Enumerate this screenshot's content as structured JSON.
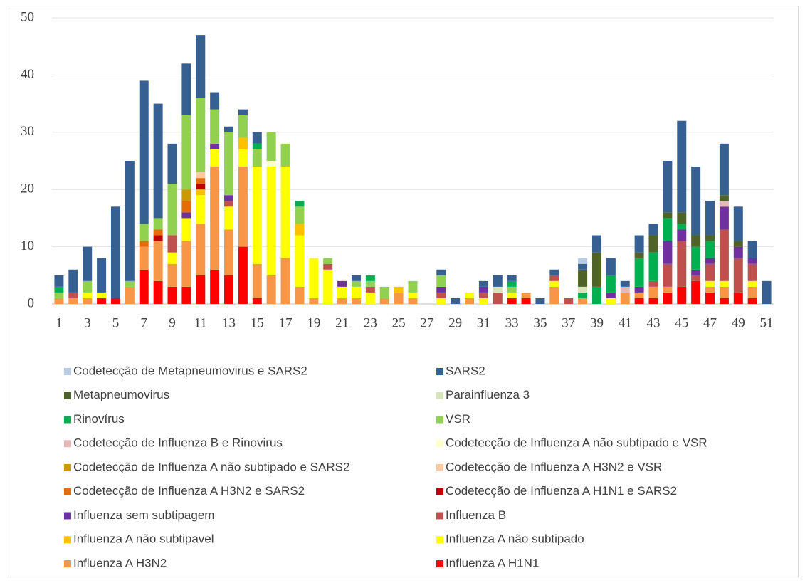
{
  "chart_data": {
    "type": "stacked_bar",
    "categories": [
      1,
      null,
      3,
      null,
      5,
      null,
      7,
      null,
      9,
      null,
      11,
      null,
      13,
      null,
      15,
      null,
      17,
      null,
      19,
      null,
      21,
      null,
      23,
      null,
      25,
      null,
      27,
      null,
      29,
      null,
      31,
      null,
      33,
      null,
      35,
      null,
      37,
      null,
      39,
      null,
      41,
      null,
      43,
      null,
      45,
      null,
      47,
      null,
      49,
      null,
      51
    ],
    "ylim": [
      0,
      50
    ],
    "yticks": [
      0,
      10,
      20,
      30,
      40,
      50
    ],
    "grid": true,
    "series": [
      {
        "name": "Influenza A H1N1",
        "color": "#ff0000",
        "values": [
          0,
          0,
          0,
          1,
          1,
          0,
          6,
          4,
          3,
          3,
          5,
          6,
          5,
          10,
          1,
          0,
          0,
          0,
          0,
          0,
          0,
          0,
          0,
          0,
          0,
          0,
          0,
          0,
          0,
          0,
          0,
          0,
          1,
          1,
          0,
          0,
          0,
          0,
          0,
          0,
          0,
          1,
          1,
          2,
          3,
          4,
          2,
          1,
          2,
          1,
          0
        ]
      },
      {
        "name": "Influenza A H3N2",
        "color": "#f79646",
        "values": [
          1,
          1,
          1,
          0,
          0,
          3,
          4,
          7,
          4,
          8,
          9,
          18,
          8,
          14,
          6,
          5,
          8,
          3,
          1,
          0,
          1,
          1,
          0,
          1,
          2,
          1,
          0,
          0,
          0,
          1,
          0,
          0,
          0,
          1,
          0,
          3,
          0,
          1,
          0,
          0,
          2,
          1,
          2,
          1,
          0,
          0,
          1,
          2,
          0,
          2,
          0
        ]
      },
      {
        "name": "Influenza A não subtipado",
        "color": "#ffff00",
        "values": [
          0,
          0,
          1,
          1,
          0,
          0,
          0,
          0,
          2,
          4,
          5,
          3,
          4,
          3,
          17,
          19,
          16,
          9,
          7,
          6,
          2,
          2,
          2,
          0,
          0,
          1,
          0,
          1,
          0,
          1,
          1,
          0,
          1,
          0,
          0,
          1,
          0,
          0,
          0,
          1,
          0,
          0,
          0,
          0,
          0,
          0,
          1,
          1,
          0,
          1,
          0
        ]
      },
      {
        "name": "Influenza A não subtipavel",
        "color": "#ffc000",
        "values": [
          0,
          0,
          0,
          0,
          0,
          0,
          0,
          0,
          0,
          0,
          1,
          0,
          0,
          2,
          0,
          0,
          0,
          2,
          0,
          0,
          0,
          0,
          0,
          0,
          1,
          0,
          0,
          0,
          0,
          0,
          0,
          0,
          0,
          0,
          0,
          0,
          0,
          0,
          0,
          0,
          0,
          0,
          0,
          0,
          0,
          0,
          0,
          0,
          0,
          0,
          0
        ]
      },
      {
        "name": "Influenza B",
        "color": "#c0504d",
        "values": [
          0,
          1,
          0,
          0,
          0,
          0,
          0,
          0,
          3,
          0,
          0,
          0,
          1,
          0,
          0,
          0,
          0,
          0,
          0,
          1,
          0,
          0,
          1,
          0,
          0,
          0,
          0,
          1,
          0,
          0,
          1,
          2,
          0,
          0,
          0,
          1,
          1,
          0,
          0,
          0,
          0,
          0,
          1,
          4,
          8,
          1,
          3,
          9,
          6,
          3,
          0
        ]
      },
      {
        "name": "Influenza sem subtipagem",
        "color": "#7030a0",
        "values": [
          0,
          0,
          0,
          0,
          0,
          0,
          0,
          0,
          0,
          1,
          0,
          1,
          1,
          0,
          0,
          0,
          0,
          0,
          0,
          0,
          1,
          0,
          0,
          0,
          0,
          0,
          0,
          1,
          0,
          0,
          1,
          0,
          0,
          0,
          0,
          0,
          0,
          0,
          0,
          1,
          0,
          1,
          0,
          4,
          2,
          1,
          1,
          4,
          2,
          1,
          0
        ]
      },
      {
        "name": "Codetecção de Influenza A H1N1 e SARS2",
        "color": "#c00000",
        "values": [
          0,
          0,
          0,
          0,
          0,
          0,
          0,
          1,
          0,
          0,
          1,
          0,
          0,
          0,
          0,
          0,
          0,
          0,
          0,
          0,
          0,
          0,
          0,
          0,
          0,
          0,
          0,
          0,
          0,
          0,
          0,
          0,
          0,
          0,
          0,
          0,
          0,
          0,
          0,
          0,
          0,
          0,
          0,
          0,
          0,
          0,
          0,
          0,
          0,
          0,
          0
        ]
      },
      {
        "name": "Codetecção de Influenza A H3N2 e SARS2",
        "color": "#e46c0a",
        "values": [
          0,
          0,
          0,
          0,
          0,
          0,
          1,
          1,
          0,
          2,
          1,
          0,
          0,
          0,
          0,
          0,
          0,
          0,
          0,
          0,
          0,
          0,
          0,
          0,
          0,
          0,
          0,
          0,
          0,
          0,
          0,
          0,
          0,
          0,
          0,
          0,
          0,
          0,
          0,
          0,
          0,
          0,
          0,
          0,
          0,
          0,
          0,
          0,
          0,
          0,
          0
        ]
      },
      {
        "name": "Codetecção de Influenza A H3N2 e VSR",
        "color": "#fbc9a6",
        "values": [
          0,
          0,
          0,
          0,
          0,
          0,
          0,
          0,
          0,
          0,
          1,
          0,
          0,
          0,
          0,
          0,
          0,
          0,
          0,
          0,
          0,
          0,
          0,
          0,
          0,
          0,
          0,
          0,
          0,
          0,
          0,
          0,
          0,
          0,
          0,
          0,
          0,
          0,
          0,
          0,
          0,
          0,
          0,
          0,
          0,
          0,
          0,
          0,
          0,
          0,
          0
        ]
      },
      {
        "name": "Codetecção de Influenza  A não subtipado e SARS2",
        "color": "#cc9900",
        "values": [
          0,
          0,
          0,
          0,
          0,
          0,
          0,
          0,
          0,
          2,
          0,
          0,
          0,
          0,
          0,
          0,
          0,
          0,
          0,
          0,
          0,
          0,
          0,
          0,
          0,
          0,
          0,
          0,
          0,
          0,
          0,
          0,
          0,
          0,
          0,
          0,
          0,
          0,
          0,
          0,
          0,
          0,
          0,
          0,
          0,
          0,
          0,
          0,
          0,
          0,
          0
        ]
      },
      {
        "name": "Codetecção de Influenza  A não subtipado e VSR",
        "color": "#ffffcc",
        "values": [
          0,
          0,
          0,
          0,
          0,
          0,
          0,
          0,
          0,
          0,
          0,
          0,
          0,
          0,
          0,
          1,
          0,
          0,
          0,
          0,
          0,
          0,
          0,
          0,
          0,
          0,
          0,
          0,
          0,
          0,
          0,
          0,
          0,
          0,
          0,
          0,
          0,
          0,
          0,
          0,
          0,
          0,
          0,
          0,
          0,
          0,
          0,
          0,
          0,
          0,
          0
        ]
      },
      {
        "name": "Codetecção de Influenza B  e Rinovirus",
        "color": "#e6b8b7",
        "values": [
          0,
          0,
          0,
          0,
          0,
          0,
          0,
          0,
          0,
          0,
          0,
          0,
          0,
          0,
          0,
          0,
          0,
          0,
          0,
          0,
          0,
          0,
          0,
          0,
          0,
          0,
          0,
          0,
          0,
          0,
          0,
          0,
          0,
          0,
          0,
          0,
          0,
          0,
          0,
          0,
          1,
          0,
          0,
          0,
          0,
          0,
          0,
          1,
          0,
          0,
          0
        ]
      },
      {
        "name": "VSR",
        "color": "#92d050",
        "values": [
          1,
          0,
          2,
          0,
          0,
          1,
          3,
          2,
          9,
          13,
          13,
          6,
          11,
          4,
          3,
          5,
          4,
          3,
          0,
          1,
          0,
          1,
          1,
          2,
          0,
          2,
          0,
          2,
          0,
          0,
          0,
          0,
          1,
          0,
          0,
          0,
          0,
          0,
          0,
          0,
          0,
          0,
          0,
          0,
          0,
          0,
          0,
          0,
          0,
          0,
          0
        ]
      },
      {
        "name": "Rinovírus",
        "color": "#00b050",
        "values": [
          1,
          0,
          0,
          0,
          0,
          0,
          0,
          0,
          0,
          0,
          0,
          0,
          0,
          0,
          1,
          0,
          0,
          1,
          0,
          0,
          0,
          0,
          1,
          0,
          0,
          0,
          0,
          0,
          0,
          0,
          0,
          0,
          1,
          0,
          0,
          0,
          0,
          1,
          3,
          3,
          0,
          5,
          5,
          4,
          1,
          4,
          3,
          0,
          0,
          0,
          0
        ]
      },
      {
        "name": "Parainfluenza 3",
        "color": "#d7e4bc",
        "values": [
          0,
          0,
          0,
          0,
          0,
          0,
          0,
          0,
          0,
          0,
          0,
          0,
          0,
          0,
          0,
          0,
          0,
          0,
          0,
          0,
          0,
          0,
          0,
          0,
          0,
          0,
          0,
          0,
          0,
          0,
          0,
          1,
          0,
          0,
          0,
          0,
          0,
          1,
          0,
          0,
          0,
          0,
          0,
          0,
          0,
          0,
          0,
          0,
          0,
          0,
          0
        ]
      },
      {
        "name": "Metapneumovirus",
        "color": "#4f6228",
        "values": [
          0,
          0,
          0,
          0,
          0,
          0,
          0,
          0,
          0,
          0,
          0,
          0,
          0,
          0,
          0,
          0,
          0,
          0,
          0,
          0,
          0,
          0,
          0,
          0,
          0,
          0,
          0,
          0,
          0,
          0,
          0,
          0,
          0,
          0,
          0,
          0,
          0,
          3,
          6,
          0,
          0,
          1,
          3,
          1,
          2,
          2,
          1,
          1,
          1,
          0,
          0
        ]
      },
      {
        "name": "SARS2",
        "color": "#376092",
        "values": [
          2,
          4,
          6,
          6,
          16,
          21,
          25,
          20,
          7,
          9,
          11,
          3,
          1,
          1,
          2,
          0,
          0,
          0,
          0,
          0,
          0,
          1,
          0,
          0,
          0,
          0,
          0,
          1,
          1,
          0,
          1,
          2,
          1,
          0,
          1,
          1,
          0,
          1,
          3,
          3,
          1,
          3,
          2,
          9,
          16,
          12,
          6,
          9,
          6,
          3,
          4
        ]
      },
      {
        "name": "Codetecção de Metapneumovirus e SARS2",
        "color": "#b8cce4",
        "values": [
          0,
          0,
          0,
          0,
          0,
          0,
          0,
          0,
          0,
          0,
          0,
          0,
          0,
          0,
          0,
          0,
          0,
          0,
          0,
          0,
          0,
          0,
          0,
          0,
          0,
          0,
          0,
          0,
          0,
          0,
          0,
          0,
          0,
          0,
          0,
          0,
          0,
          1,
          0,
          0,
          0,
          0,
          0,
          0,
          0,
          0,
          0,
          0,
          0,
          0,
          0
        ]
      }
    ]
  }
}
